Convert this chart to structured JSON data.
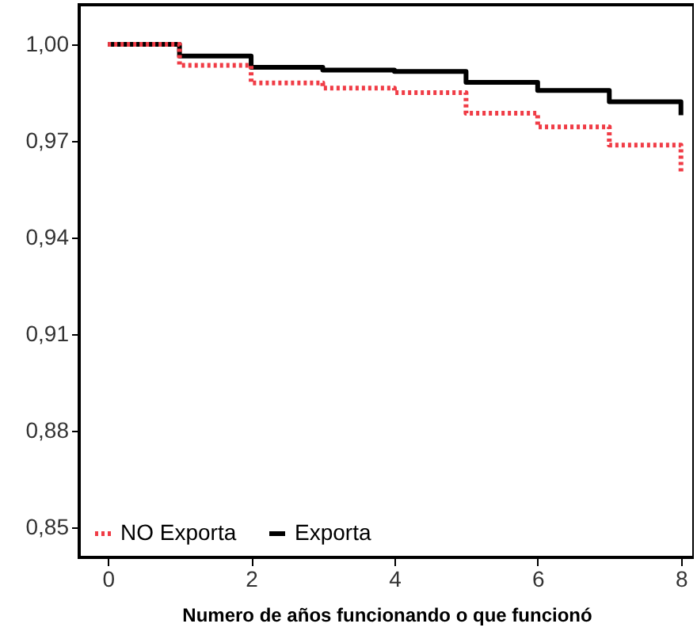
{
  "chart_data": {
    "type": "step",
    "xlabel": "Numero de años funcionando o que funcionó",
    "xlim": [
      -0.4,
      8.18
    ],
    "ylim": [
      0.8407,
      1.0123
    ],
    "xticks": [
      0,
      2,
      4,
      6,
      8
    ],
    "yticks": [
      {
        "value": 0.85,
        "label": "0,85"
      },
      {
        "value": 0.88,
        "label": "0,88"
      },
      {
        "value": 0.91,
        "label": "0,91"
      },
      {
        "value": 0.94,
        "label": "0,94"
      },
      {
        "value": 0.97,
        "label": "0,97"
      },
      {
        "value": 1.0,
        "label": "1,00"
      }
    ],
    "grid": false,
    "legend": "bottom left",
    "marker": "none",
    "x": [
      0,
      1,
      2,
      3,
      4,
      5,
      6,
      7,
      8,
      8
    ],
    "series": [
      {
        "name": "NO Exporta",
        "color": "#f03c46",
        "line_style": "dotted",
        "values": [
          1.0,
          0.9935,
          0.988,
          0.9864,
          0.985,
          0.9786,
          0.9744,
          0.9687,
          0.9687,
          0.96
        ]
      },
      {
        "name": "Exporta",
        "color": "#000000",
        "line_style": "solid",
        "values": [
          1.0,
          0.9964,
          0.9929,
          0.992,
          0.9916,
          0.9882,
          0.9857,
          0.9822,
          0.9822,
          0.978
        ]
      }
    ]
  }
}
